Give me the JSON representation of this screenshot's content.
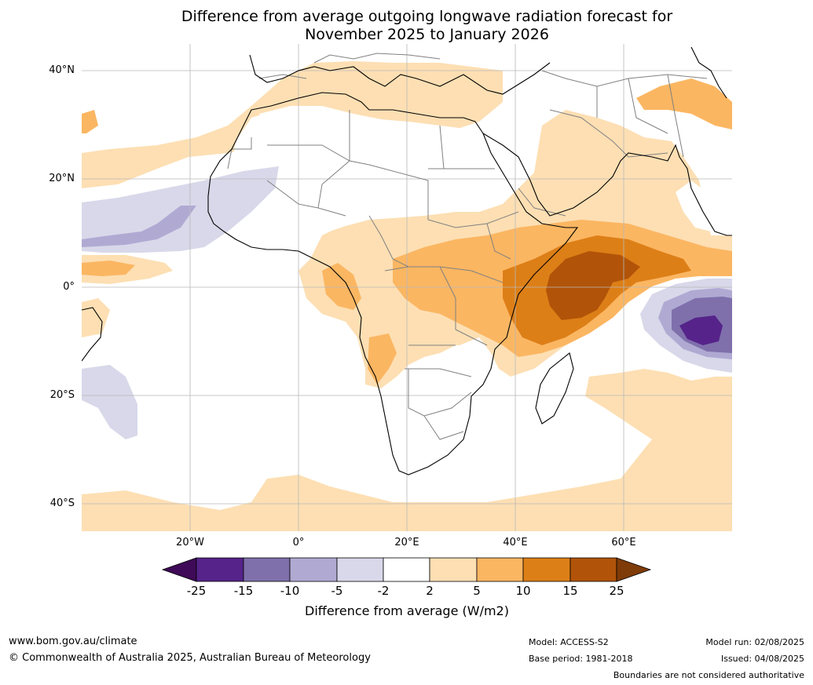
{
  "title": {
    "line1": "Difference from average outgoing longwave radiation forecast for",
    "line2": "November 2025 to January 2026"
  },
  "map": {
    "lat_labels": [
      "40°N",
      "20°N",
      "0°",
      "20°S",
      "40°S"
    ],
    "lon_labels": [
      "20°W",
      "0°",
      "20°E",
      "40°E",
      "60°E"
    ],
    "extent": {
      "lon": [
        -40,
        80
      ],
      "lat": [
        -45,
        45
      ]
    },
    "colors": {
      "anom_m25": "#3f0a57",
      "anom_m15": "#56238a",
      "anom_m10": "#7f70ac",
      "anom_m5": "#b0aad3",
      "anom_m2": "#d8d8ea",
      "anom_0": "#ffffff",
      "anom_p2": "#fddfb3",
      "anom_p5": "#fbb662",
      "anom_p10": "#dd7f17",
      "anom_p15": "#b15409",
      "anom_p25": "#7f3b08"
    }
  },
  "colorbar": {
    "ticks": [
      "-25",
      "-15",
      "-10",
      "-5",
      "-2",
      "2",
      "5",
      "10",
      "15",
      "25"
    ],
    "title": "Difference from average (W/m2)"
  },
  "footer": {
    "website": "www.bom.gov.au/climate",
    "copyright": "© Commonwealth of Australia 2025, Australian Bureau of Meteorology",
    "model": "Model: ACCESS-S2",
    "base_period": "Base period: 1981-2018",
    "model_run": "Model run: 02/08/2025",
    "issued": "Issued: 04/08/2025",
    "disclaimer": "Boundaries are not considered authoritative"
  }
}
